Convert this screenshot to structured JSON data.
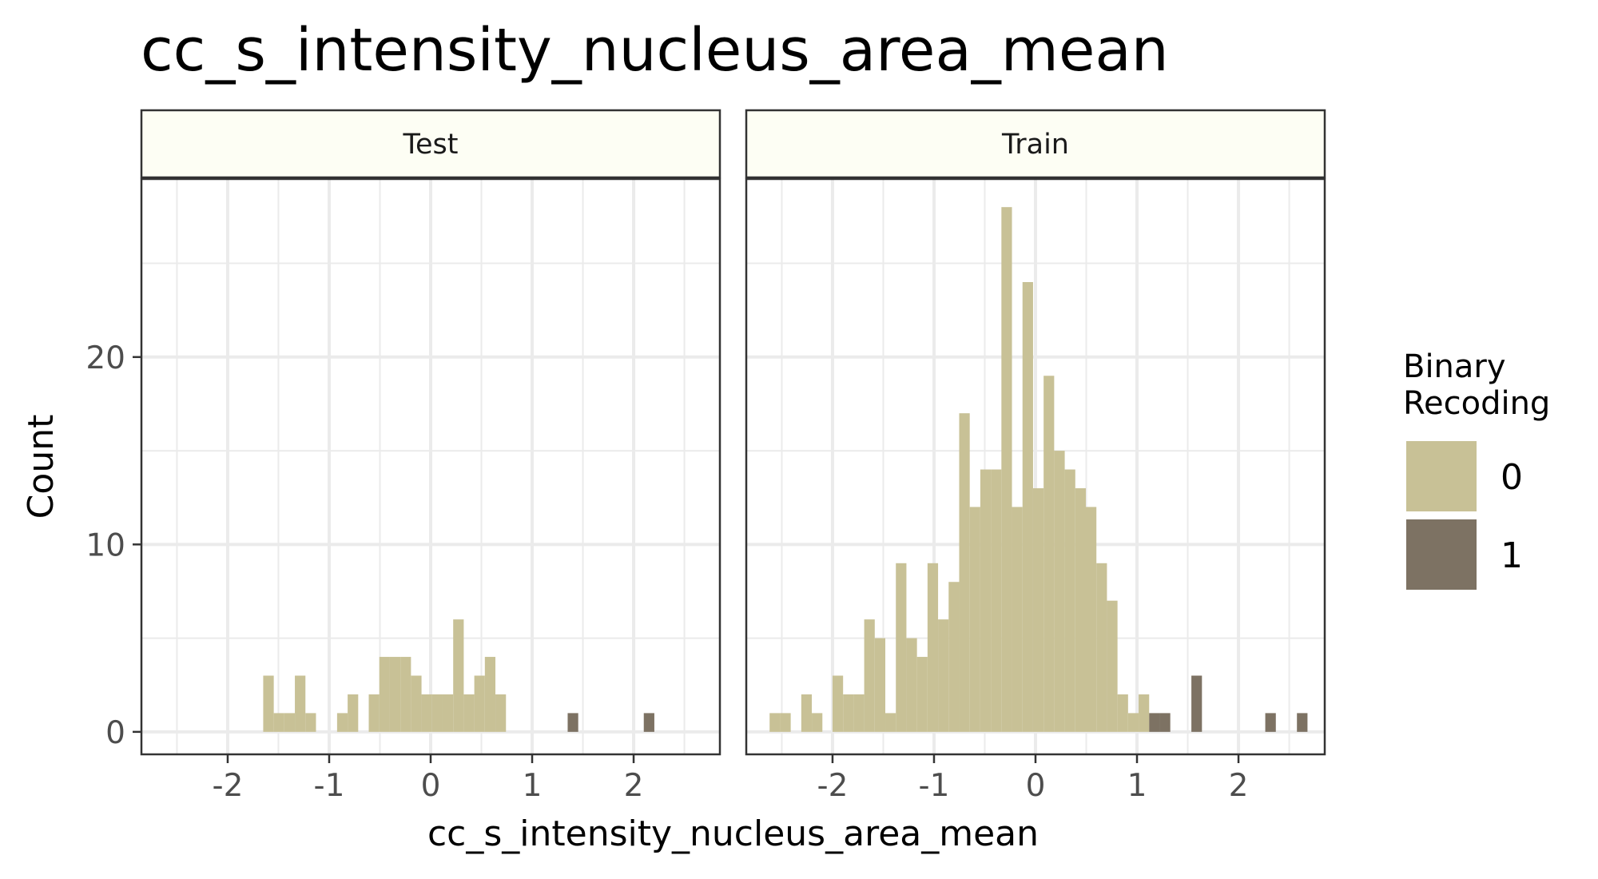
{
  "chart_data": {
    "type": "bar",
    "title": "cc_s_intensity_nucleus_area_mean",
    "xlabel": "cc_s_intensity_nucleus_area_mean",
    "ylabel": "Count",
    "xlim": [
      -2.85,
      2.85
    ],
    "ylim": [
      -1.2,
      29.5
    ],
    "x_ticks": [
      -2,
      -1,
      0,
      1,
      2
    ],
    "x_tick_labels": [
      "-2",
      "-1",
      "0",
      "1",
      "2"
    ],
    "y_ticks": [
      0,
      10,
      20
    ],
    "y_tick_labels": [
      "0",
      "10",
      "20"
    ],
    "bin_width": 0.104,
    "grid": true,
    "legend": {
      "title": [
        "Binary",
        "Recoding"
      ],
      "position": "right",
      "entries": [
        {
          "label": "0",
          "color": "#c8c196"
        },
        {
          "label": "1",
          "color": "#7d7263"
        }
      ]
    },
    "strip_color": "#fdfef4",
    "panels": [
      {
        "name": "Test",
        "series": [
          {
            "name": "0",
            "color": "#c8c196",
            "bin_starts": [
              -1.65,
              -1.546,
              -1.442,
              -1.338,
              -1.234,
              -0.922,
              -0.818,
              -0.61,
              -0.506,
              -0.402,
              -0.298,
              -0.194,
              -0.09,
              0.014,
              0.118,
              0.222,
              0.326,
              0.43,
              0.534,
              0.638
            ],
            "values": [
              3,
              1,
              1,
              3,
              1,
              1,
              2,
              2,
              4,
              4,
              4,
              3,
              2,
              2,
              2,
              6,
              2,
              3,
              4,
              2
            ]
          },
          {
            "name": "1",
            "color": "#7d7263",
            "bin_starts": [
              1.35,
              2.1
            ],
            "values": [
              1,
              1
            ]
          }
        ]
      },
      {
        "name": "Train",
        "series": [
          {
            "name": "0",
            "color": "#c8c196",
            "bin_starts": [
              -2.62,
              -2.516,
              -2.308,
              -2.204,
              -2.0,
              -1.896,
              -1.792,
              -1.688,
              -1.584,
              -1.48,
              -1.376,
              -1.272,
              -1.168,
              -1.064,
              -0.96,
              -0.856,
              -0.752,
              -0.648,
              -0.544,
              -0.44,
              -0.336,
              -0.232,
              -0.128,
              -0.024,
              0.08,
              0.184,
              0.288,
              0.392,
              0.496,
              0.6,
              0.704,
              0.808,
              0.912,
              1.016
            ],
            "values": [
              1,
              1,
              2,
              1,
              3,
              2,
              2,
              6,
              5,
              1,
              9,
              5,
              4,
              9,
              6,
              8,
              17,
              12,
              14,
              14,
              28,
              12,
              24,
              13,
              19,
              15,
              14,
              13,
              12,
              9,
              7,
              2,
              1,
              2
            ]
          },
          {
            "name": "1",
            "color": "#7d7263",
            "bin_starts": [
              1.12,
              1.224,
              1.536,
              2.264,
              2.576
            ],
            "values": [
              1,
              1,
              3,
              1,
              1
            ]
          }
        ]
      }
    ]
  }
}
